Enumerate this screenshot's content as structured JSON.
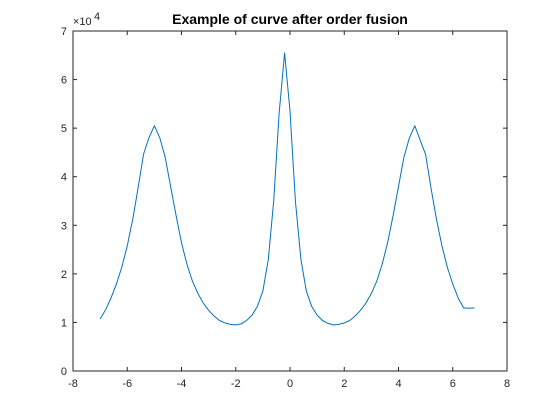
{
  "chart_data": {
    "type": "line",
    "title": "Example of curve after order fusion",
    "xlabel": "",
    "ylabel": "",
    "xlim": [
      -8,
      8
    ],
    "ylim": [
      0,
      70000
    ],
    "x_ticks": [
      -8,
      -6,
      -4,
      -2,
      0,
      2,
      4,
      6,
      8
    ],
    "x_tick_labels": [
      "-8",
      "-6",
      "-4",
      "-2",
      "0",
      "2",
      "4",
      "6",
      "8"
    ],
    "y_ticks": [
      0,
      10000,
      20000,
      30000,
      40000,
      50000,
      60000,
      70000
    ],
    "y_tick_labels": [
      "0",
      "1",
      "2",
      "3",
      "4",
      "5",
      "6",
      "7"
    ],
    "y_exponent_label": {
      "base": "×10",
      "power": "4"
    },
    "grid": false,
    "box": true,
    "colors": {
      "line": "#0072BD",
      "axes": "#262626",
      "background": "#ffffff"
    },
    "series": [
      {
        "x": [
          -7.0,
          -6.8,
          -6.6,
          -6.4,
          -6.2,
          -6.0,
          -5.8,
          -5.6,
          -5.4,
          -5.2,
          -5.0,
          -4.8,
          -4.6,
          -4.4,
          -4.2,
          -4.0,
          -3.8,
          -3.6,
          -3.4,
          -3.2,
          -3.0,
          -2.8,
          -2.6,
          -2.4,
          -2.2,
          -2.0,
          -1.8,
          -1.6,
          -1.4,
          -1.2,
          -1.0,
          -0.8,
          -0.6,
          -0.4,
          -0.2,
          0.0,
          0.2,
          0.4,
          0.6,
          0.8,
          1.0,
          1.2,
          1.4,
          1.6,
          1.8,
          2.0,
          2.2,
          2.4,
          2.6,
          2.8,
          3.0,
          3.2,
          3.4,
          3.6,
          3.8,
          4.0,
          4.2,
          4.4,
          4.6,
          4.8,
          5.0,
          5.2,
          5.4,
          5.6,
          5.8,
          6.0,
          6.2,
          6.4,
          6.6,
          6.8
        ],
        "values": [
          10700,
          12600,
          15000,
          17900,
          21400,
          25800,
          31200,
          37700,
          44600,
          48000,
          50500,
          48000,
          44000,
          38000,
          32000,
          26400,
          22000,
          18500,
          16000,
          14000,
          12500,
          11300,
          10400,
          9900,
          9600,
          9500,
          9700,
          10400,
          11500,
          13300,
          16500,
          23000,
          35000,
          53000,
          65500,
          53500,
          35000,
          23000,
          16500,
          13300,
          11500,
          10400,
          9800,
          9500,
          9600,
          9900,
          10400,
          11300,
          12500,
          14000,
          16000,
          18500,
          22000,
          26400,
          32000,
          38000,
          44000,
          48000,
          50500,
          47500,
          44600,
          37700,
          31200,
          25800,
          21400,
          17900,
          15000,
          13000,
          12900,
          13000
        ]
      }
    ]
  }
}
